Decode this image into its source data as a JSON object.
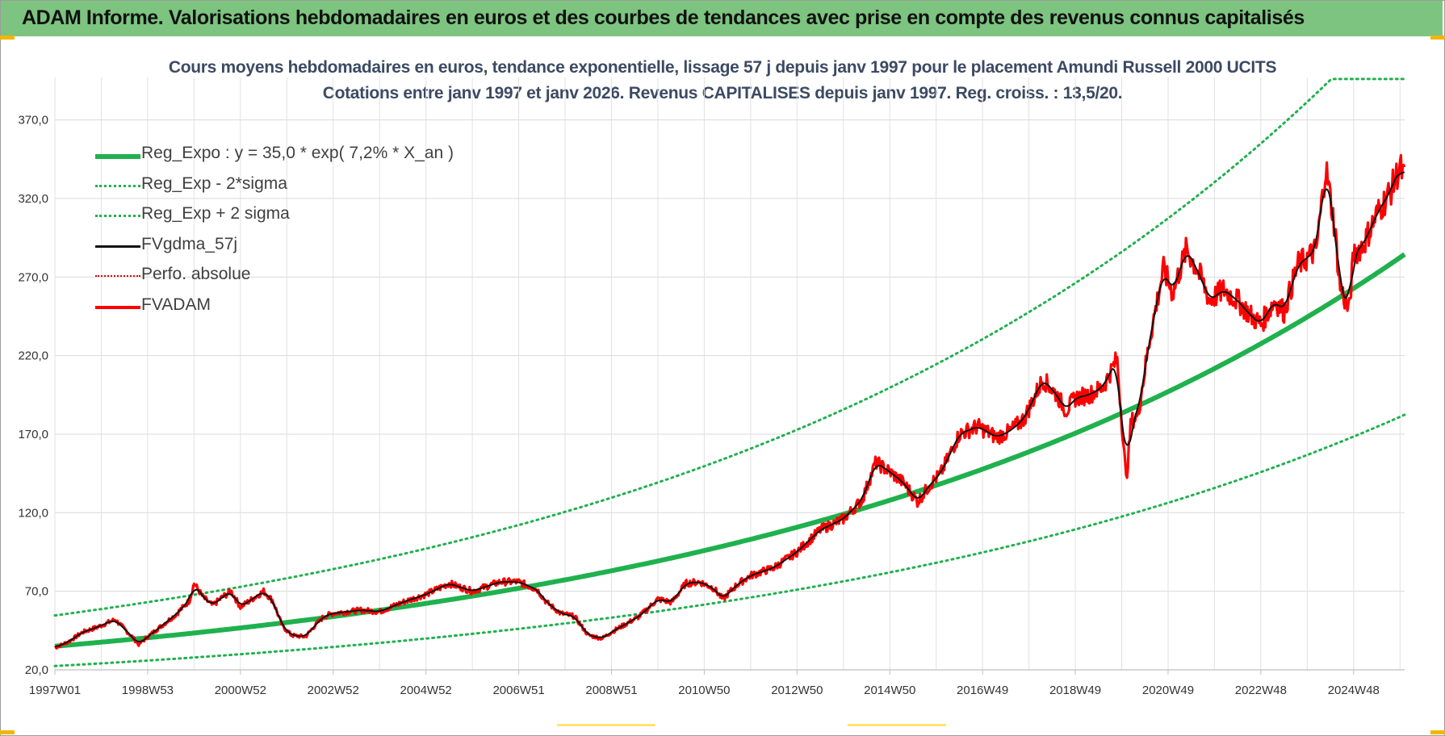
{
  "banner": {
    "title": "ADAM Informe. Valorisations hebdomadaires en euros et des courbes de tendances avec prise en compte des revenus connus capitalisés"
  },
  "chart_data": {
    "type": "line",
    "title_line1": "Cours moyens hebdomadaires en euros, tendance exponentielle, lissage 57 j depuis janv 1997 pour le placement Amundi Russell 2000 UCITS",
    "title_line2": "Cotations entre janv 1997 et janv 2026. Revenus CAPITALISES depuis janv 1997. Reg. croiss. : 13,5/20.",
    "xlabel": "",
    "ylabel": "",
    "xlim": [
      1997.0,
      2026.1
    ],
    "ylim": [
      20,
      397
    ],
    "grid": true,
    "legend_position": "top-left",
    "yticks": [
      "20,0",
      "70,0",
      "120,0",
      "170,0",
      "220,0",
      "270,0",
      "320,0",
      "370,0"
    ],
    "ytick_values": [
      20,
      70,
      120,
      170,
      220,
      270,
      320,
      370
    ],
    "xticks": [
      "1997W01",
      "1998W53",
      "2000W52",
      "2002W52",
      "2004W52",
      "2006W51",
      "2008W51",
      "2010W50",
      "2012W50",
      "2014W50",
      "2016W49",
      "2018W49",
      "2020W49",
      "2022W48",
      "2024W48"
    ],
    "xtick_values": [
      1997.0,
      1999.0,
      2001.0,
      2003.0,
      2005.0,
      2007.0,
      2009.0,
      2011.0,
      2013.0,
      2015.0,
      2017.0,
      2019.0,
      2021.0,
      2023.0,
      2025.0
    ],
    "regression": {
      "intercept": 35.0,
      "rate": 0.072,
      "sigma_factor": 1.56,
      "upper_cap": 396
    },
    "series": [
      {
        "name": "Reg_Expo : y = 35,0 * exp( 7,2% *  X_an )",
        "color": "#1fb14e",
        "style": "solid-thick",
        "kind": "reg"
      },
      {
        "name": "Reg_Exp - 2*sigma",
        "color": "#1fb14e",
        "style": "dotted",
        "kind": "lower"
      },
      {
        "name": "Reg_Exp + 2 sigma",
        "color": "#1fb14e",
        "style": "dotted",
        "kind": "upper"
      },
      {
        "name": "FVgdma_57j",
        "color": "#111111",
        "style": "solid",
        "kind": "smooth"
      },
      {
        "name": "Perfo. absolue",
        "color": "#e00000",
        "style": "dotted-thin",
        "kind": "none"
      },
      {
        "name": "FVADAM",
        "color": "#ff0000",
        "style": "solid",
        "kind": "price",
        "x": [
          1997.0,
          1997.3,
          1997.6,
          1997.9,
          1998.3,
          1998.5,
          1998.7,
          1998.8,
          1999.0,
          1999.3,
          1999.6,
          1999.9,
          2000.0,
          2000.2,
          2000.4,
          2000.6,
          2000.8,
          2001.0,
          2001.3,
          2001.5,
          2001.7,
          2001.9,
          2002.1,
          2002.4,
          2002.6,
          2002.8,
          2003.0,
          2003.3,
          2003.6,
          2004.0,
          2004.5,
          2005.0,
          2005.5,
          2006.0,
          2006.3,
          2006.6,
          2007.0,
          2007.4,
          2007.6,
          2007.9,
          2008.2,
          2008.5,
          2008.8,
          2009.0,
          2009.3,
          2009.6,
          2010.0,
          2010.3,
          2010.6,
          2010.9,
          2011.2,
          2011.4,
          2011.7,
          2012.0,
          2012.5,
          2013.0,
          2013.5,
          2014.0,
          2014.4,
          2014.7,
          2015.0,
          2015.3,
          2015.6,
          2015.9,
          2016.1,
          2016.5,
          2016.9,
          2017.3,
          2017.6,
          2017.9,
          2018.3,
          2018.6,
          2018.8,
          2019.0,
          2019.3,
          2019.6,
          2019.9,
          2020.1,
          2020.2,
          2020.35,
          2020.6,
          2020.9,
          2021.1,
          2021.4,
          2021.7,
          2021.9,
          2022.2,
          2022.5,
          2022.8,
          2023.0,
          2023.3,
          2023.5,
          2023.8,
          2024.0,
          2024.2,
          2024.4,
          2024.6,
          2024.7,
          2024.9,
          2025.0,
          2025.2,
          2025.5,
          2025.8,
          2026.0,
          2026.1
        ],
        "y": [
          34,
          38,
          44,
          47,
          52,
          46,
          40,
          36,
          41,
          48,
          55,
          64,
          75,
          66,
          61,
          66,
          70,
          60,
          66,
          70,
          64,
          48,
          42,
          41,
          48,
          54,
          56,
          57,
          58,
          57,
          63,
          68,
          75,
          70,
          73,
          76,
          76,
          71,
          63,
          56,
          54,
          42,
          40,
          44,
          49,
          54,
          65,
          63,
          75,
          76,
          72,
          65,
          74,
          80,
          85,
          95,
          109,
          116,
          128,
          152,
          146,
          139,
          127,
          139,
          145,
          170,
          175,
          168,
          172,
          180,
          205,
          195,
          185,
          193,
          195,
          200,
          218,
          140,
          178,
          182,
          230,
          275,
          260,
          288,
          270,
          255,
          262,
          255,
          245,
          240,
          255,
          248,
          278,
          282,
          288,
          340,
          300,
          265,
          248,
          285,
          290,
          310,
          325,
          340,
          332
        ]
      }
    ]
  }
}
